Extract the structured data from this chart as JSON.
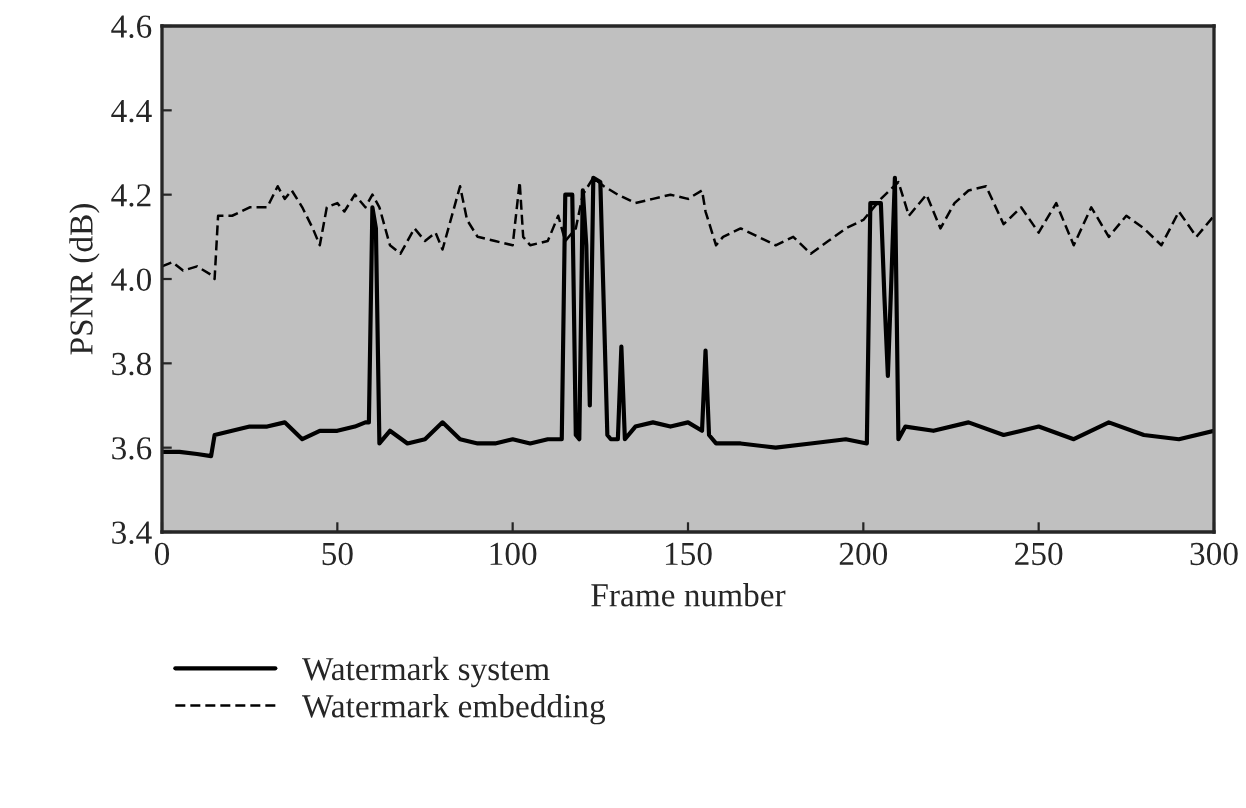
{
  "chart_data": {
    "type": "line",
    "xlabel": "Frame number",
    "ylabel": "PSNR (dB)",
    "xlim": [
      0,
      300
    ],
    "xticks": [
      0,
      50,
      100,
      150,
      200,
      250,
      300
    ],
    "ylim": [
      3.4,
      4.6
    ],
    "yticks": [
      3.4,
      3.6,
      3.8,
      {
        "value": 4,
        "label": "4.0"
      },
      4.2,
      4.4,
      4.6
    ],
    "grid": false,
    "legend": "bottom",
    "series": [
      {
        "name": "Watermark system",
        "color": "#000000",
        "line_style": "solid",
        "x": [
          0,
          5,
          10,
          14,
          15,
          20,
          25,
          30,
          35,
          40,
          45,
          50,
          55,
          58,
          59,
          60,
          61,
          62,
          65,
          70,
          75,
          80,
          85,
          90,
          95,
          100,
          105,
          110,
          114,
          115,
          117,
          118,
          119,
          120,
          121,
          122,
          123,
          125,
          127,
          128,
          130,
          131,
          132,
          135,
          140,
          145,
          150,
          154,
          155,
          156,
          158,
          165,
          175,
          185,
          195,
          201,
          202,
          204,
          205,
          206,
          207,
          208,
          209,
          210,
          212,
          220,
          230,
          240,
          250,
          260,
          270,
          280,
          290,
          300
        ],
        "values": [
          3.59,
          3.59,
          3.585,
          3.58,
          3.63,
          3.64,
          3.65,
          3.65,
          3.66,
          3.62,
          3.64,
          3.64,
          3.65,
          3.66,
          3.66,
          4.17,
          4.12,
          3.61,
          3.64,
          3.61,
          3.62,
          3.66,
          3.62,
          3.61,
          3.61,
          3.62,
          3.61,
          3.62,
          3.62,
          4.2,
          4.2,
          3.63,
          3.62,
          4.21,
          4.08,
          3.7,
          4.24,
          4.23,
          3.63,
          3.62,
          3.62,
          3.84,
          3.62,
          3.65,
          3.66,
          3.65,
          3.66,
          3.64,
          3.83,
          3.63,
          3.61,
          3.61,
          3.6,
          3.61,
          3.62,
          3.61,
          4.18,
          4.18,
          4.18,
          3.96,
          3.77,
          4.0,
          4.24,
          3.62,
          3.65,
          3.64,
          3.66,
          3.63,
          3.65,
          3.62,
          3.66,
          3.63,
          3.62,
          3.64
        ]
      },
      {
        "name": "Watermark embedding",
        "color": "#000000",
        "line_style": "dashed",
        "x": [
          0,
          3,
          6,
          10,
          14,
          15,
          16,
          20,
          25,
          30,
          33,
          35,
          37,
          40,
          43,
          45,
          47,
          50,
          52,
          55,
          58,
          60,
          62,
          65,
          68,
          72,
          75,
          78,
          80,
          85,
          87,
          90,
          95,
          100,
          102,
          103,
          105,
          110,
          113,
          115,
          118,
          120,
          123,
          126,
          130,
          135,
          140,
          145,
          150,
          154,
          155,
          158,
          160,
          165,
          170,
          175,
          180,
          185,
          190,
          195,
          200,
          205,
          210,
          213,
          218,
          222,
          226,
          230,
          235,
          240,
          245,
          250,
          255,
          260,
          265,
          270,
          275,
          280,
          285,
          290,
          295,
          300
        ],
        "values": [
          4.03,
          4.04,
          4.02,
          4.03,
          4.01,
          4.0,
          4.15,
          4.15,
          4.17,
          4.17,
          4.22,
          4.19,
          4.21,
          4.17,
          4.12,
          4.08,
          4.17,
          4.18,
          4.16,
          4.2,
          4.17,
          4.2,
          4.17,
          4.08,
          4.06,
          4.12,
          4.09,
          4.11,
          4.07,
          4.22,
          4.14,
          4.1,
          4.09,
          4.08,
          4.23,
          4.1,
          4.08,
          4.09,
          4.15,
          4.09,
          4.12,
          4.2,
          4.24,
          4.22,
          4.2,
          4.18,
          4.19,
          4.2,
          4.19,
          4.21,
          4.16,
          4.08,
          4.1,
          4.12,
          4.1,
          4.08,
          4.1,
          4.06,
          4.09,
          4.12,
          4.14,
          4.19,
          4.23,
          4.15,
          4.2,
          4.12,
          4.18,
          4.21,
          4.22,
          4.13,
          4.17,
          4.11,
          4.18,
          4.08,
          4.17,
          4.1,
          4.15,
          4.12,
          4.08,
          4.16,
          4.1,
          4.15
        ]
      }
    ]
  }
}
